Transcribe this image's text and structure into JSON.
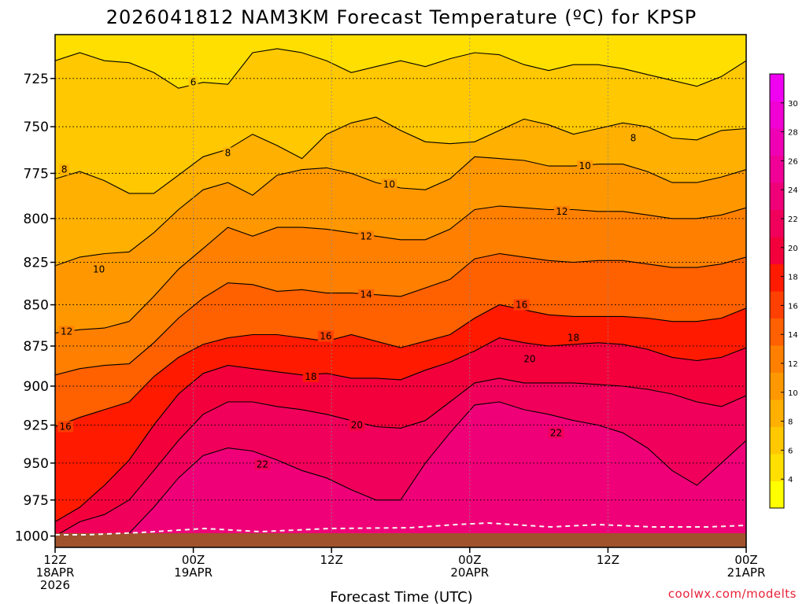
{
  "page": {
    "credit": "coolwx.com/modelts"
  },
  "chart_data": {
    "type": "heatmap",
    "title": "2026041812 NAM3KM Forecast Temperature (ºC) for KPSP",
    "xlabel": "Forecast Time (UTC)",
    "ylabel": "",
    "y_scale": "log-pressure",
    "ylim": [
      1008,
      703
    ],
    "xlim": [
      0,
      60
    ],
    "x_units": "hours after 2026-04-18 12Z",
    "x_ticks": [
      {
        "x": 0,
        "lines": [
          "12Z",
          "18APR",
          "2026"
        ]
      },
      {
        "x": 12,
        "lines": [
          "00Z",
          "19APR"
        ]
      },
      {
        "x": 24,
        "lines": [
          "12Z"
        ]
      },
      {
        "x": 36,
        "lines": [
          "00Z",
          "20APR"
        ]
      },
      {
        "x": 48,
        "lines": [
          "12Z"
        ]
      },
      {
        "x": 60,
        "lines": [
          "00Z",
          "21APR"
        ]
      }
    ],
    "y_ticks": [
      725,
      750,
      775,
      800,
      825,
      850,
      875,
      900,
      925,
      950,
      975,
      1000
    ],
    "grid": true,
    "ground_color": "#a0522d",
    "colorbar": {
      "labels": [
        4,
        6,
        8,
        10,
        12,
        14,
        16,
        18,
        20,
        22,
        24,
        26,
        28,
        30
      ],
      "colors": [
        "#ffff00",
        "#ffdf00",
        "#ffc800",
        "#ffb000",
        "#ff9800",
        "#ff7f00",
        "#ff6000",
        "#ff4000",
        "#ff1a00",
        "#f3003c",
        "#f0005a",
        "#f00078",
        "#f00096",
        "#f000b4",
        "#f000d2",
        "#f000f0"
      ],
      "min": 2,
      "max": 32
    },
    "series": [
      {
        "level": 6,
        "p": [
          716,
          712,
          716,
          717,
          722,
          730,
          727,
          728,
          712,
          710,
          712,
          716,
          722,
          719,
          716,
          719,
          715,
          712,
          713,
          718,
          721,
          718,
          718,
          720,
          723,
          726,
          729,
          724,
          716
        ]
      },
      {
        "level": 8,
        "p": [
          778,
          774,
          779,
          786,
          786,
          776,
          766,
          762,
          754,
          760,
          767,
          754,
          748,
          745,
          752,
          758,
          759,
          758,
          752,
          746,
          749,
          754,
          751,
          748,
          750,
          756,
          757,
          752,
          751
        ]
      },
      {
        "level": 10,
        "p": [
          827,
          822,
          820,
          819,
          808,
          795,
          784,
          780,
          787,
          776,
          773,
          772,
          775,
          780,
          783,
          784,
          778,
          766,
          767,
          768,
          771,
          771,
          770,
          770,
          774,
          780,
          780,
          777,
          773
        ]
      },
      {
        "level": 12,
        "p": [
          867,
          865,
          864,
          860,
          845,
          829,
          817,
          805,
          810,
          805,
          805,
          806,
          808,
          810,
          812,
          812,
          806,
          795,
          793,
          794,
          795,
          795,
          796,
          796,
          798,
          800,
          800,
          798,
          794
        ]
      },
      {
        "level": 14,
        "p": [
          893,
          889,
          887,
          886,
          873,
          858,
          846,
          837,
          838,
          842,
          841,
          843,
          843,
          844,
          845,
          840,
          835,
          823,
          820,
          822,
          824,
          825,
          824,
          824,
          826,
          828,
          828,
          826,
          822
        ]
      },
      {
        "level": 16,
        "p": [
          926,
          920,
          915,
          910,
          894,
          882,
          874,
          870,
          868,
          868,
          870,
          872,
          868,
          872,
          876,
          872,
          868,
          858,
          850,
          853,
          856,
          857,
          857,
          857,
          858,
          860,
          860,
          858,
          852
        ]
      },
      {
        "level": 18,
        "p": [
          990,
          980,
          965,
          948,
          925,
          905,
          892,
          887,
          889,
          891,
          893,
          892,
          895,
          895,
          896,
          890,
          885,
          878,
          870,
          873,
          875,
          874,
          873,
          874,
          877,
          882,
          884,
          882,
          876
        ]
      },
      {
        "level": 20,
        "p": [
          1000,
          990,
          985,
          975,
          955,
          935,
          918,
          910,
          910,
          913,
          915,
          918,
          922,
          926,
          927,
          922,
          910,
          898,
          895,
          898,
          898,
          898,
          899,
          900,
          902,
          905,
          910,
          913,
          906
        ]
      },
      {
        "level": 22,
        "p": [
          1003,
          1002,
          1001,
          998,
          980,
          960,
          945,
          940,
          942,
          948,
          955,
          960,
          968,
          975,
          975,
          950,
          930,
          912,
          910,
          915,
          918,
          922,
          925,
          930,
          940,
          955,
          965,
          950,
          935
        ]
      }
    ],
    "contour_labels": [
      {
        "level": 6,
        "x": 12.0,
        "y": 727
      },
      {
        "level": 8,
        "x": 0.8,
        "y": 773
      },
      {
        "level": 8,
        "x": 15.0,
        "y": 764
      },
      {
        "level": 8,
        "x": 50.2,
        "y": 756
      },
      {
        "level": 10,
        "x": 3.8,
        "y": 829
      },
      {
        "level": 10,
        "x": 29.0,
        "y": 781
      },
      {
        "level": 10,
        "x": 46.0,
        "y": 771
      },
      {
        "level": 12,
        "x": 1.0,
        "y": 866
      },
      {
        "level": 12,
        "x": 27.0,
        "y": 810
      },
      {
        "level": 12,
        "x": 44.0,
        "y": 796
      },
      {
        "level": 14,
        "x": 27.0,
        "y": 844
      },
      {
        "level": 16,
        "x": 0.9,
        "y": 926
      },
      {
        "level": 16,
        "x": 23.5,
        "y": 869
      },
      {
        "level": 16,
        "x": 40.5,
        "y": 850
      },
      {
        "level": 18,
        "x": 22.2,
        "y": 894
      },
      {
        "level": 18,
        "x": 45.0,
        "y": 870
      },
      {
        "level": 20,
        "x": 26.2,
        "y": 925
      },
      {
        "level": 20,
        "x": 41.2,
        "y": 883
      },
      {
        "level": 22,
        "x": 18.0,
        "y": 951
      },
      {
        "level": 22,
        "x": 43.5,
        "y": 930
      }
    ]
  }
}
